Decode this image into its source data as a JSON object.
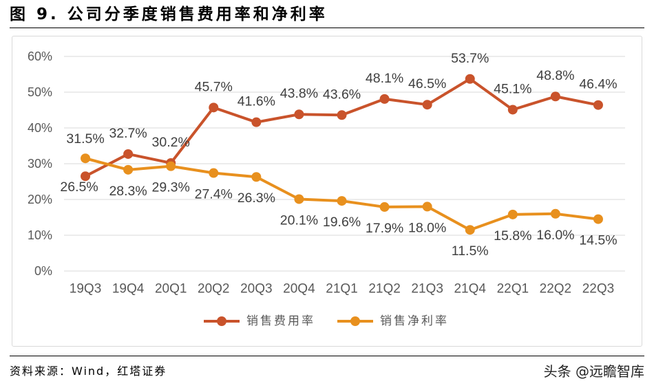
{
  "chart_data": {
    "type": "line",
    "title": "图 9. 公司分季度销售费用率和净利率",
    "xlabel": "",
    "ylabel": "",
    "categories": [
      "19Q3",
      "19Q4",
      "20Q1",
      "20Q2",
      "20Q3",
      "20Q4",
      "21Q1",
      "21Q2",
      "21Q3",
      "21Q4",
      "22Q1",
      "22Q2",
      "22Q3"
    ],
    "ylim": [
      0,
      60
    ],
    "yticks": [
      0,
      10,
      20,
      30,
      40,
      50,
      60
    ],
    "ytick_labels": [
      "0%",
      "10%",
      "20%",
      "30%",
      "40%",
      "50%",
      "60%"
    ],
    "grid": true,
    "legend": "bottom",
    "series": [
      {
        "name": "销售费用率",
        "color": "#C9532B",
        "values": [
          26.5,
          32.7,
          30.2,
          45.7,
          41.6,
          43.8,
          43.6,
          48.1,
          46.5,
          53.7,
          45.1,
          48.8,
          46.4
        ],
        "labels": [
          "26.5%",
          "32.7%",
          "30.2%",
          "45.7%",
          "41.6%",
          "43.8%",
          "43.6%",
          "48.1%",
          "46.5%",
          "53.7%",
          "45.1%",
          "48.8%",
          "46.4%"
        ]
      },
      {
        "name": "销售净利率",
        "color": "#E8901E",
        "values": [
          31.5,
          28.3,
          29.3,
          27.4,
          26.3,
          20.1,
          19.6,
          17.9,
          18.0,
          11.5,
          15.8,
          16.0,
          14.5
        ],
        "labels": [
          "31.5%",
          "28.3%",
          "29.3%",
          "27.4%",
          "26.3%",
          "20.1%",
          "19.6%",
          "17.9%",
          "18.0%",
          "11.5%",
          "15.8%",
          "16.0%",
          "14.5%"
        ]
      }
    ]
  },
  "source": "资料来源：Wind，红塔证券",
  "watermark": "头条 @远瞻智库"
}
